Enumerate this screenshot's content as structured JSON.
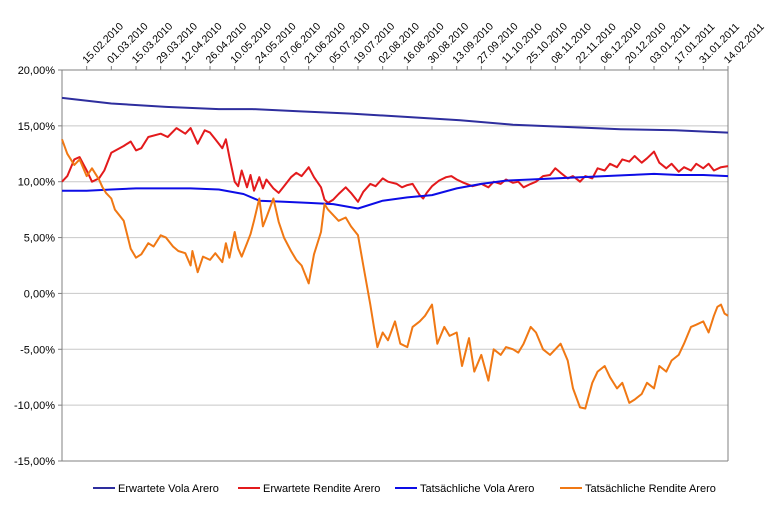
{
  "chart_data": {
    "type": "line",
    "title": "",
    "xlabel": "",
    "ylabel": "",
    "ylim": [
      -15,
      20
    ],
    "ytick_step": 5,
    "ytick_format": "percent_comma_2",
    "xlim": [
      "2010-02-01",
      "2011-02-14"
    ],
    "x_tick_labels": [
      "15.02.2010",
      "01.03.2010",
      "15.03.2010",
      "29.03.2010",
      "12.04.2010",
      "26.04.2010",
      "10.05.2010",
      "24.05.2010",
      "07.06.2010",
      "21.06.2010",
      "05.07.2010",
      "19.07.2010",
      "02.08.2010",
      "16.08.2010",
      "30.08.2010",
      "13.09.2010",
      "27.09.2010",
      "11.10.2010",
      "25.10.2010",
      "08.11.2010",
      "22.11.2010",
      "06.12.2010",
      "20.12.2010",
      "03.01.2011",
      "17.01.2011",
      "31.01.2011",
      "14.02.2011"
    ],
    "grid": "horizontal",
    "legend_position": "bottom",
    "series": [
      {
        "name": "Erwartete Vola Arero",
        "color": "#2e2e9e",
        "points": [
          [
            "2010-02-01",
            17.5
          ],
          [
            "2010-03-01",
            17.0
          ],
          [
            "2010-04-01",
            16.7
          ],
          [
            "2010-05-01",
            16.5
          ],
          [
            "2010-05-20",
            16.5
          ],
          [
            "2010-06-15",
            16.3
          ],
          [
            "2010-07-15",
            16.1
          ],
          [
            "2010-08-15",
            15.8
          ],
          [
            "2010-09-15",
            15.5
          ],
          [
            "2010-10-15",
            15.1
          ],
          [
            "2010-11-15",
            14.9
          ],
          [
            "2010-12-15",
            14.7
          ],
          [
            "2011-01-15",
            14.6
          ],
          [
            "2011-02-14",
            14.4
          ]
        ]
      },
      {
        "name": "Erwartete Rendite Arero",
        "color": "#e31a1c",
        "points": [
          [
            "2010-02-01",
            10.0
          ],
          [
            "2010-02-04",
            10.5
          ],
          [
            "2010-02-08",
            12.0
          ],
          [
            "2010-02-11",
            12.2
          ],
          [
            "2010-02-15",
            11.0
          ],
          [
            "2010-02-18",
            10.0
          ],
          [
            "2010-02-22",
            10.3
          ],
          [
            "2010-02-25",
            11.0
          ],
          [
            "2010-03-01",
            12.6
          ],
          [
            "2010-03-08",
            13.2
          ],
          [
            "2010-03-12",
            13.6
          ],
          [
            "2010-03-15",
            12.8
          ],
          [
            "2010-03-18",
            13.0
          ],
          [
            "2010-03-22",
            14.0
          ],
          [
            "2010-03-29",
            14.3
          ],
          [
            "2010-04-02",
            14.0
          ],
          [
            "2010-04-07",
            14.8
          ],
          [
            "2010-04-12",
            14.3
          ],
          [
            "2010-04-15",
            14.8
          ],
          [
            "2010-04-19",
            13.4
          ],
          [
            "2010-04-23",
            14.6
          ],
          [
            "2010-04-26",
            14.4
          ],
          [
            "2010-04-29",
            13.8
          ],
          [
            "2010-05-03",
            13.0
          ],
          [
            "2010-05-05",
            13.8
          ],
          [
            "2010-05-07",
            12.2
          ],
          [
            "2010-05-10",
            10.0
          ],
          [
            "2010-05-12",
            9.6
          ],
          [
            "2010-05-14",
            11.0
          ],
          [
            "2010-05-17",
            9.5
          ],
          [
            "2010-05-19",
            10.6
          ],
          [
            "2010-05-21",
            9.2
          ],
          [
            "2010-05-24",
            10.4
          ],
          [
            "2010-05-26",
            9.4
          ],
          [
            "2010-05-28",
            10.2
          ],
          [
            "2010-06-01",
            9.4
          ],
          [
            "2010-06-04",
            9.0
          ],
          [
            "2010-06-07",
            9.6
          ],
          [
            "2010-06-11",
            10.4
          ],
          [
            "2010-06-14",
            10.8
          ],
          [
            "2010-06-17",
            10.5
          ],
          [
            "2010-06-21",
            11.3
          ],
          [
            "2010-06-24",
            10.4
          ],
          [
            "2010-06-28",
            9.5
          ],
          [
            "2010-06-30",
            8.4
          ],
          [
            "2010-07-02",
            8.1
          ],
          [
            "2010-07-05",
            8.4
          ],
          [
            "2010-07-08",
            8.9
          ],
          [
            "2010-07-12",
            9.5
          ],
          [
            "2010-07-15",
            9.0
          ],
          [
            "2010-07-19",
            8.2
          ],
          [
            "2010-07-22",
            9.1
          ],
          [
            "2010-07-26",
            9.8
          ],
          [
            "2010-07-29",
            9.6
          ],
          [
            "2010-08-02",
            10.3
          ],
          [
            "2010-08-05",
            10.0
          ],
          [
            "2010-08-10",
            9.8
          ],
          [
            "2010-08-13",
            9.5
          ],
          [
            "2010-08-16",
            9.7
          ],
          [
            "2010-08-19",
            9.8
          ],
          [
            "2010-08-23",
            8.8
          ],
          [
            "2010-08-25",
            8.5
          ],
          [
            "2010-08-27",
            9.0
          ],
          [
            "2010-08-30",
            9.6
          ],
          [
            "2010-09-03",
            10.1
          ],
          [
            "2010-09-07",
            10.4
          ],
          [
            "2010-09-10",
            10.5
          ],
          [
            "2010-09-13",
            10.2
          ],
          [
            "2010-09-17",
            9.9
          ],
          [
            "2010-09-22",
            9.6
          ],
          [
            "2010-09-27",
            9.8
          ],
          [
            "2010-10-01",
            9.5
          ],
          [
            "2010-10-04",
            10.0
          ],
          [
            "2010-10-08",
            9.8
          ],
          [
            "2010-10-11",
            10.2
          ],
          [
            "2010-10-15",
            9.9
          ],
          [
            "2010-10-18",
            10.0
          ],
          [
            "2010-10-21",
            9.5
          ],
          [
            "2010-10-25",
            9.8
          ],
          [
            "2010-10-28",
            10.0
          ],
          [
            "2010-11-01",
            10.5
          ],
          [
            "2010-11-05",
            10.6
          ],
          [
            "2010-11-08",
            11.2
          ],
          [
            "2010-11-11",
            10.8
          ],
          [
            "2010-11-15",
            10.3
          ],
          [
            "2010-11-18",
            10.5
          ],
          [
            "2010-11-22",
            10.0
          ],
          [
            "2010-11-25",
            10.5
          ],
          [
            "2010-11-29",
            10.3
          ],
          [
            "2010-12-02",
            11.2
          ],
          [
            "2010-12-06",
            11.0
          ],
          [
            "2010-12-09",
            11.6
          ],
          [
            "2010-12-13",
            11.3
          ],
          [
            "2010-12-16",
            12.0
          ],
          [
            "2010-12-20",
            11.8
          ],
          [
            "2010-12-23",
            12.3
          ],
          [
            "2010-12-27",
            11.7
          ],
          [
            "2010-12-30",
            12.1
          ],
          [
            "2011-01-03",
            12.7
          ],
          [
            "2011-01-06",
            11.7
          ],
          [
            "2011-01-10",
            11.2
          ],
          [
            "2011-01-13",
            11.6
          ],
          [
            "2011-01-17",
            10.9
          ],
          [
            "2011-01-20",
            11.3
          ],
          [
            "2011-01-24",
            11.0
          ],
          [
            "2011-01-27",
            11.6
          ],
          [
            "2011-01-31",
            11.2
          ],
          [
            "2011-02-03",
            11.6
          ],
          [
            "2011-02-06",
            11.0
          ],
          [
            "2011-02-10",
            11.3
          ],
          [
            "2011-02-14",
            11.4
          ]
        ]
      },
      {
        "name": "Tatsächliche Vola Arero",
        "color": "#0d0de6",
        "points": [
          [
            "2010-02-01",
            9.2
          ],
          [
            "2010-02-15",
            9.2
          ],
          [
            "2010-03-01",
            9.3
          ],
          [
            "2010-03-15",
            9.4
          ],
          [
            "2010-04-01",
            9.4
          ],
          [
            "2010-04-15",
            9.4
          ],
          [
            "2010-05-01",
            9.3
          ],
          [
            "2010-05-15",
            8.9
          ],
          [
            "2010-05-24",
            8.3
          ],
          [
            "2010-06-07",
            8.2
          ],
          [
            "2010-06-21",
            8.1
          ],
          [
            "2010-07-05",
            8.0
          ],
          [
            "2010-07-19",
            7.6
          ],
          [
            "2010-08-02",
            8.3
          ],
          [
            "2010-08-16",
            8.6
          ],
          [
            "2010-08-30",
            8.8
          ],
          [
            "2010-09-13",
            9.4
          ],
          [
            "2010-09-27",
            9.8
          ],
          [
            "2010-10-11",
            10.1
          ],
          [
            "2010-10-25",
            10.2
          ],
          [
            "2010-11-08",
            10.3
          ],
          [
            "2010-11-22",
            10.4
          ],
          [
            "2010-12-06",
            10.5
          ],
          [
            "2010-12-20",
            10.6
          ],
          [
            "2011-01-03",
            10.7
          ],
          [
            "2011-01-17",
            10.6
          ],
          [
            "2011-01-31",
            10.6
          ],
          [
            "2011-02-14",
            10.5
          ]
        ]
      },
      {
        "name": "Tatsächliche Rendite Arero",
        "color": "#f07814",
        "points": [
          [
            "2010-02-01",
            13.8
          ],
          [
            "2010-02-04",
            12.5
          ],
          [
            "2010-02-08",
            11.5
          ],
          [
            "2010-02-11",
            12.0
          ],
          [
            "2010-02-15",
            10.5
          ],
          [
            "2010-02-18",
            11.2
          ],
          [
            "2010-02-22",
            10.2
          ],
          [
            "2010-02-24",
            9.5
          ],
          [
            "2010-02-26",
            9.0
          ],
          [
            "2010-03-01",
            8.5
          ],
          [
            "2010-03-03",
            7.5
          ],
          [
            "2010-03-08",
            6.5
          ],
          [
            "2010-03-12",
            4.0
          ],
          [
            "2010-03-15",
            3.2
          ],
          [
            "2010-03-18",
            3.5
          ],
          [
            "2010-03-22",
            4.5
          ],
          [
            "2010-03-25",
            4.2
          ],
          [
            "2010-03-29",
            5.2
          ],
          [
            "2010-04-01",
            5.0
          ],
          [
            "2010-04-05",
            4.2
          ],
          [
            "2010-04-08",
            3.8
          ],
          [
            "2010-04-12",
            3.6
          ],
          [
            "2010-04-15",
            2.5
          ],
          [
            "2010-04-16",
            3.8
          ],
          [
            "2010-04-19",
            1.9
          ],
          [
            "2010-04-22",
            3.3
          ],
          [
            "2010-04-26",
            3.0
          ],
          [
            "2010-04-29",
            3.6
          ],
          [
            "2010-05-03",
            2.8
          ],
          [
            "2010-05-05",
            4.5
          ],
          [
            "2010-05-07",
            3.2
          ],
          [
            "2010-05-10",
            5.5
          ],
          [
            "2010-05-12",
            4.0
          ],
          [
            "2010-05-14",
            3.3
          ],
          [
            "2010-05-17",
            4.5
          ],
          [
            "2010-05-19",
            5.3
          ],
          [
            "2010-05-21",
            6.5
          ],
          [
            "2010-05-24",
            8.5
          ],
          [
            "2010-05-26",
            6.0
          ],
          [
            "2010-05-28",
            6.8
          ],
          [
            "2010-06-01",
            8.5
          ],
          [
            "2010-06-04",
            6.4
          ],
          [
            "2010-06-07",
            5.0
          ],
          [
            "2010-06-11",
            3.8
          ],
          [
            "2010-06-14",
            3.0
          ],
          [
            "2010-06-17",
            2.5
          ],
          [
            "2010-06-21",
            0.9
          ],
          [
            "2010-06-24",
            3.5
          ],
          [
            "2010-06-28",
            5.5
          ],
          [
            "2010-06-30",
            8.0
          ],
          [
            "2010-07-02",
            7.5
          ],
          [
            "2010-07-05",
            7.0
          ],
          [
            "2010-07-08",
            6.5
          ],
          [
            "2010-07-12",
            6.8
          ],
          [
            "2010-07-15",
            6.0
          ],
          [
            "2010-07-19",
            5.2
          ],
          [
            "2010-07-22",
            2.5
          ],
          [
            "2010-07-26",
            -1.0
          ],
          [
            "2010-07-28",
            -3.0
          ],
          [
            "2010-07-30",
            -4.8
          ],
          [
            "2010-08-02",
            -3.5
          ],
          [
            "2010-08-05",
            -4.2
          ],
          [
            "2010-08-09",
            -2.5
          ],
          [
            "2010-08-12",
            -4.5
          ],
          [
            "2010-08-16",
            -4.8
          ],
          [
            "2010-08-19",
            -3.0
          ],
          [
            "2010-08-23",
            -2.5
          ],
          [
            "2010-08-26",
            -2.0
          ],
          [
            "2010-08-30",
            -1.0
          ],
          [
            "2010-09-02",
            -4.5
          ],
          [
            "2010-09-06",
            -3.0
          ],
          [
            "2010-09-09",
            -3.8
          ],
          [
            "2010-09-13",
            -3.5
          ],
          [
            "2010-09-16",
            -6.5
          ],
          [
            "2010-09-20",
            -4.0
          ],
          [
            "2010-09-23",
            -7.0
          ],
          [
            "2010-09-27",
            -5.5
          ],
          [
            "2010-10-01",
            -7.8
          ],
          [
            "2010-10-04",
            -5.0
          ],
          [
            "2010-10-08",
            -5.5
          ],
          [
            "2010-10-11",
            -4.8
          ],
          [
            "2010-10-15",
            -5.0
          ],
          [
            "2010-10-18",
            -5.3
          ],
          [
            "2010-10-21",
            -4.5
          ],
          [
            "2010-10-25",
            -3.0
          ],
          [
            "2010-10-28",
            -3.5
          ],
          [
            "2010-11-01",
            -5.0
          ],
          [
            "2010-11-05",
            -5.5
          ],
          [
            "2010-11-08",
            -5.0
          ],
          [
            "2010-11-11",
            -4.5
          ],
          [
            "2010-11-15",
            -6.0
          ],
          [
            "2010-11-18",
            -8.5
          ],
          [
            "2010-11-22",
            -10.2
          ],
          [
            "2010-11-25",
            -10.3
          ],
          [
            "2010-11-29",
            -8.0
          ],
          [
            "2010-12-02",
            -7.0
          ],
          [
            "2010-12-06",
            -6.5
          ],
          [
            "2010-12-09",
            -7.5
          ],
          [
            "2010-12-13",
            -8.5
          ],
          [
            "2010-12-16",
            -8.0
          ],
          [
            "2010-12-20",
            -9.8
          ],
          [
            "2010-12-23",
            -9.5
          ],
          [
            "2010-12-27",
            -9.0
          ],
          [
            "2010-12-30",
            -8.0
          ],
          [
            "2011-01-03",
            -8.5
          ],
          [
            "2011-01-06",
            -6.5
          ],
          [
            "2011-01-10",
            -7.0
          ],
          [
            "2011-01-13",
            -6.0
          ],
          [
            "2011-01-17",
            -5.5
          ],
          [
            "2011-01-20",
            -4.5
          ],
          [
            "2011-01-24",
            -3.0
          ],
          [
            "2011-01-27",
            -2.8
          ],
          [
            "2011-01-31",
            -2.5
          ],
          [
            "2011-02-03",
            -3.5
          ],
          [
            "2011-02-06",
            -2.0
          ],
          [
            "2011-02-08",
            -1.2
          ],
          [
            "2011-02-10",
            -1.0
          ],
          [
            "2011-02-12",
            -1.8
          ],
          [
            "2011-02-14",
            -2.0
          ]
        ]
      }
    ]
  }
}
